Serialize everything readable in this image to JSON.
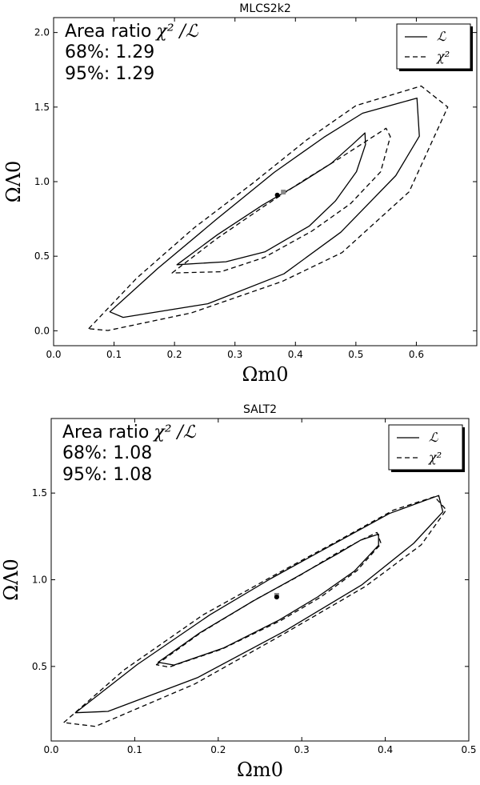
{
  "chart_data": [
    {
      "type": "contour",
      "title": "MLCS2k2",
      "xlabel": "Ωm0",
      "xlabel_sub": "m0",
      "ylabel": "ΩΛ0",
      "ylabel_sub": "Λ0",
      "xlim": [
        0.0,
        0.7
      ],
      "ylim": [
        -0.1,
        2.1
      ],
      "xticks": [
        "0.0",
        "0.1",
        "0.2",
        "0.3",
        "0.4",
        "0.5",
        "0.6"
      ],
      "yticks": [
        "0.0",
        "0.5",
        "1.0",
        "1.5",
        "2.0"
      ],
      "annotation": {
        "heading": "Area ratio",
        "math": "χ² /ℒ",
        "line68": "68%: 1.29",
        "line95": "95%: 1.29"
      },
      "legend": {
        "position": "top-right",
        "entries": [
          {
            "label": "ℒ",
            "style": "solid"
          },
          {
            "label": "χ²",
            "style": "dashed"
          }
        ]
      },
      "best_fit": {
        "likelihood": [
          0.37,
          0.91
        ],
        "chi2": [
          0.38,
          0.93
        ]
      },
      "contours": [
        {
          "level": "68%",
          "style": "solid",
          "points": [
            [
              0.204,
              0.443
            ],
            [
              0.271,
              0.644
            ],
            [
              0.346,
              0.844
            ],
            [
              0.405,
              0.983
            ],
            [
              0.459,
              1.122
            ],
            [
              0.494,
              1.248
            ],
            [
              0.515,
              1.327
            ],
            [
              0.516,
              1.249
            ],
            [
              0.501,
              1.067
            ],
            [
              0.466,
              0.87
            ],
            [
              0.423,
              0.703
            ],
            [
              0.35,
              0.53
            ],
            [
              0.285,
              0.463
            ]
          ]
        },
        {
          "level": "68%",
          "style": "dashed",
          "points": [
            [
              0.196,
              0.388
            ],
            [
              0.27,
              0.618
            ],
            [
              0.351,
              0.843
            ],
            [
              0.418,
              1.02
            ],
            [
              0.468,
              1.144
            ],
            [
              0.515,
              1.266
            ],
            [
              0.55,
              1.358
            ],
            [
              0.557,
              1.302
            ],
            [
              0.541,
              1.066
            ],
            [
              0.491,
              0.852
            ],
            [
              0.427,
              0.668
            ],
            [
              0.348,
              0.491
            ],
            [
              0.277,
              0.396
            ]
          ]
        },
        {
          "level": "95%",
          "style": "solid",
          "points": [
            [
              0.093,
              0.127
            ],
            [
              0.172,
              0.417
            ],
            [
              0.269,
              0.746
            ],
            [
              0.365,
              1.062
            ],
            [
              0.447,
              1.297
            ],
            [
              0.511,
              1.459
            ],
            [
              0.601,
              1.56
            ],
            [
              0.605,
              1.305
            ],
            [
              0.566,
              1.04
            ],
            [
              0.475,
              0.661
            ],
            [
              0.381,
              0.382
            ],
            [
              0.255,
              0.181
            ],
            [
              0.115,
              0.09
            ]
          ]
        },
        {
          "level": "95%",
          "style": "dashed",
          "points": [
            [
              0.058,
              0.014
            ],
            [
              0.138,
              0.355
            ],
            [
              0.232,
              0.689
            ],
            [
              0.331,
              0.994
            ],
            [
              0.418,
              1.278
            ],
            [
              0.5,
              1.51
            ],
            [
              0.608,
              1.641
            ],
            [
              0.652,
              1.5
            ],
            [
              0.588,
              0.932
            ],
            [
              0.477,
              0.524
            ],
            [
              0.378,
              0.331
            ],
            [
              0.228,
              0.12
            ],
            [
              0.09,
              0.002
            ]
          ]
        }
      ]
    },
    {
      "type": "contour",
      "title": "SALT2",
      "xlabel": "Ωm0",
      "xlabel_sub": "m0",
      "ylabel": "ΩΛ0",
      "ylabel_sub": "Λ0",
      "xlim": [
        0.0,
        0.5
      ],
      "ylim": [
        0.07,
        1.93
      ],
      "xticks": [
        "0.0",
        "0.1",
        "0.2",
        "0.3",
        "0.4",
        "0.5"
      ],
      "yticks": [
        "0.5",
        "1.0",
        "1.5"
      ],
      "annotation": {
        "heading": "Area ratio",
        "math": "χ² /ℒ",
        "line68": "68%: 1.08",
        "line95": "95%: 1.08"
      },
      "legend": {
        "position": "top-right",
        "entries": [
          {
            "label": "ℒ",
            "style": "solid"
          },
          {
            "label": "χ²",
            "style": "dashed"
          }
        ]
      },
      "best_fit": {
        "likelihood": [
          0.27,
          0.9
        ],
        "chi2": [
          0.27,
          0.91
        ]
      },
      "contours": [
        {
          "level": "68%",
          "style": "solid",
          "points": [
            [
              0.128,
              0.524
            ],
            [
              0.178,
              0.694
            ],
            [
              0.241,
              0.875
            ],
            [
              0.29,
              1.006
            ],
            [
              0.344,
              1.153
            ],
            [
              0.371,
              1.23
            ],
            [
              0.392,
              1.263
            ],
            [
              0.392,
              1.199
            ],
            [
              0.363,
              1.05
            ],
            [
              0.319,
              0.901
            ],
            [
              0.273,
              0.768
            ],
            [
              0.206,
              0.606
            ],
            [
              0.147,
              0.508
            ]
          ]
        },
        {
          "level": "68%",
          "style": "dashed",
          "points": [
            [
              0.126,
              0.51
            ],
            [
              0.18,
              0.697
            ],
            [
              0.245,
              0.887
            ],
            [
              0.296,
              1.02
            ],
            [
              0.343,
              1.157
            ],
            [
              0.372,
              1.231
            ],
            [
              0.39,
              1.273
            ],
            [
              0.395,
              1.208
            ],
            [
              0.366,
              1.052
            ],
            [
              0.322,
              0.898
            ],
            [
              0.275,
              0.765
            ],
            [
              0.205,
              0.601
            ],
            [
              0.141,
              0.496
            ]
          ]
        },
        {
          "level": "95%",
          "style": "solid",
          "points": [
            [
              0.029,
              0.233
            ],
            [
              0.103,
              0.511
            ],
            [
              0.19,
              0.798
            ],
            [
              0.263,
              1.007
            ],
            [
              0.34,
              1.211
            ],
            [
              0.405,
              1.382
            ],
            [
              0.464,
              1.486
            ],
            [
              0.469,
              1.392
            ],
            [
              0.434,
              1.21
            ],
            [
              0.372,
              0.971
            ],
            [
              0.28,
              0.705
            ],
            [
              0.175,
              0.435
            ],
            [
              0.068,
              0.241
            ]
          ]
        },
        {
          "level": "95%",
          "style": "dashed",
          "points": [
            [
              0.015,
              0.176
            ],
            [
              0.087,
              0.479
            ],
            [
              0.182,
              0.798
            ],
            [
              0.269,
              1.031
            ],
            [
              0.344,
              1.226
            ],
            [
              0.41,
              1.402
            ],
            [
              0.459,
              1.479
            ],
            [
              0.473,
              1.403
            ],
            [
              0.443,
              1.201
            ],
            [
              0.376,
              0.961
            ],
            [
              0.278,
              0.686
            ],
            [
              0.172,
              0.399
            ],
            [
              0.053,
              0.154
            ]
          ]
        }
      ]
    }
  ]
}
